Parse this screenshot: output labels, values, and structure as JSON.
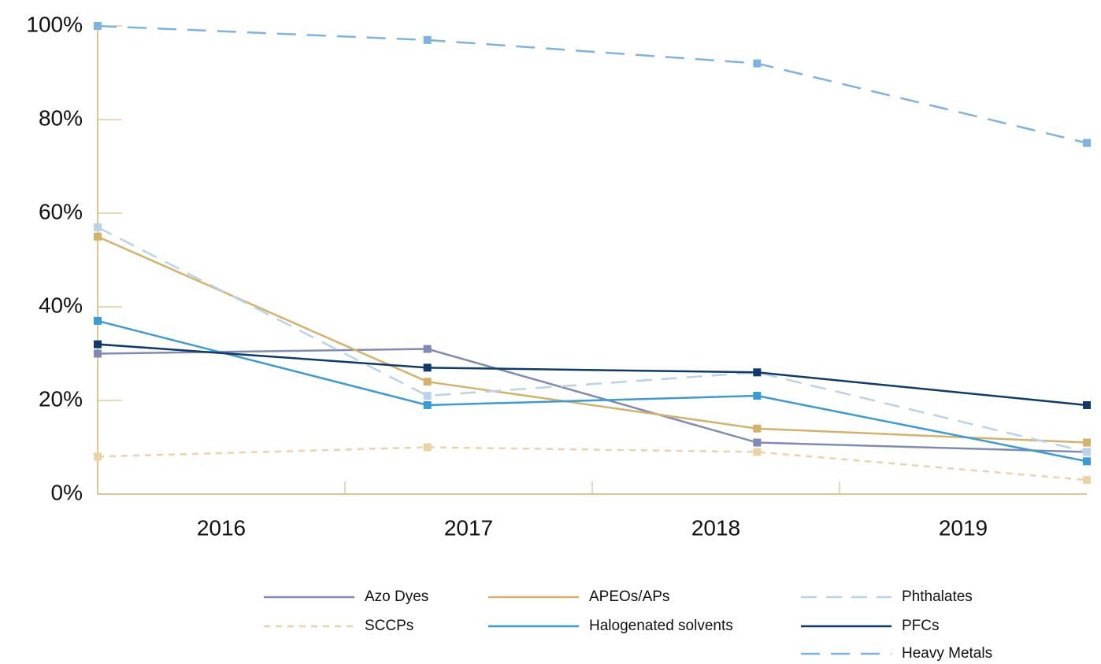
{
  "chart_data": {
    "type": "line",
    "categories": [
      "2016",
      "2017",
      "2018",
      "2019"
    ],
    "ylim": [
      0,
      100
    ],
    "yticks": [
      {
        "value": 0,
        "label": "0%"
      },
      {
        "value": 20,
        "label": "20%"
      },
      {
        "value": 40,
        "label": "40%"
      },
      {
        "value": 60,
        "label": "60%"
      },
      {
        "value": 80,
        "label": "80%"
      },
      {
        "value": 100,
        "label": "100%"
      }
    ],
    "axis_color": "#d4b26a",
    "series": [
      {
        "name": "Azo Dyes",
        "color": "#7f8bb5",
        "line_style": "solid",
        "values": [
          30,
          31,
          11,
          9
        ]
      },
      {
        "name": "APEOs/APs",
        "color": "#d4b26a",
        "line_style": "solid",
        "values": [
          55,
          24,
          14,
          11
        ]
      },
      {
        "name": "Phthalates",
        "color": "#b8d3ea",
        "line_style": "dashed",
        "values": [
          57,
          21,
          26,
          9
        ]
      },
      {
        "name": "SCCPs",
        "color": "#ecd3a6",
        "line_style": "dotted",
        "values": [
          8,
          10,
          9,
          3
        ]
      },
      {
        "name": "Halogenated solvents",
        "color": "#3a9bd5",
        "line_style": "solid",
        "values": [
          37,
          19,
          21,
          7
        ]
      },
      {
        "name": "PFCs",
        "color": "#0f3a6b",
        "line_style": "solid",
        "values": [
          32,
          27,
          26,
          19
        ]
      },
      {
        "name": "Heavy Metals",
        "color": "#7eb2e0",
        "line_style": "long-dashed",
        "values": [
          100,
          97,
          92,
          75
        ]
      }
    ]
  }
}
